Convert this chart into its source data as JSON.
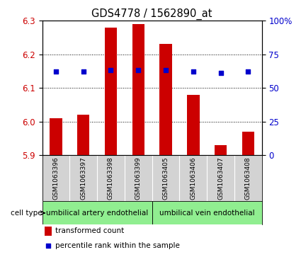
{
  "title": "GDS4778 / 1562890_at",
  "samples": [
    "GSM1063396",
    "GSM1063397",
    "GSM1063398",
    "GSM1063399",
    "GSM1063405",
    "GSM1063406",
    "GSM1063407",
    "GSM1063408"
  ],
  "transformed_counts": [
    6.01,
    6.02,
    6.28,
    6.29,
    6.23,
    6.08,
    5.93,
    5.97
  ],
  "percentile_ranks": [
    62,
    62,
    63,
    63,
    63,
    62,
    61,
    62
  ],
  "ylim_left": [
    5.9,
    6.3
  ],
  "ylim_right": [
    0,
    100
  ],
  "yticks_left": [
    5.9,
    6.0,
    6.1,
    6.2,
    6.3
  ],
  "yticks_right": [
    0,
    25,
    50,
    75,
    100
  ],
  "ytick_labels_right": [
    "0",
    "25",
    "50",
    "75",
    "100%"
  ],
  "bar_color": "#cc0000",
  "dot_color": "#0000cc",
  "cell_types": [
    {
      "label": "umbilical artery endothelial",
      "start": 0,
      "end": 4,
      "color": "#90ee90"
    },
    {
      "label": "umbilical vein endothelial",
      "start": 4,
      "end": 8,
      "color": "#90ee90"
    }
  ],
  "cell_type_label": "cell type",
  "legend_bar_label": "transformed count",
  "legend_dot_label": "percentile rank within the sample",
  "bar_bottom": 5.9,
  "background_color": "#ffffff",
  "tick_label_color_left": "#cc0000",
  "tick_label_color_right": "#0000cc",
  "sample_bg_color": "#d3d3d3",
  "grid_dotted_vals": [
    6.0,
    6.1,
    6.2
  ]
}
